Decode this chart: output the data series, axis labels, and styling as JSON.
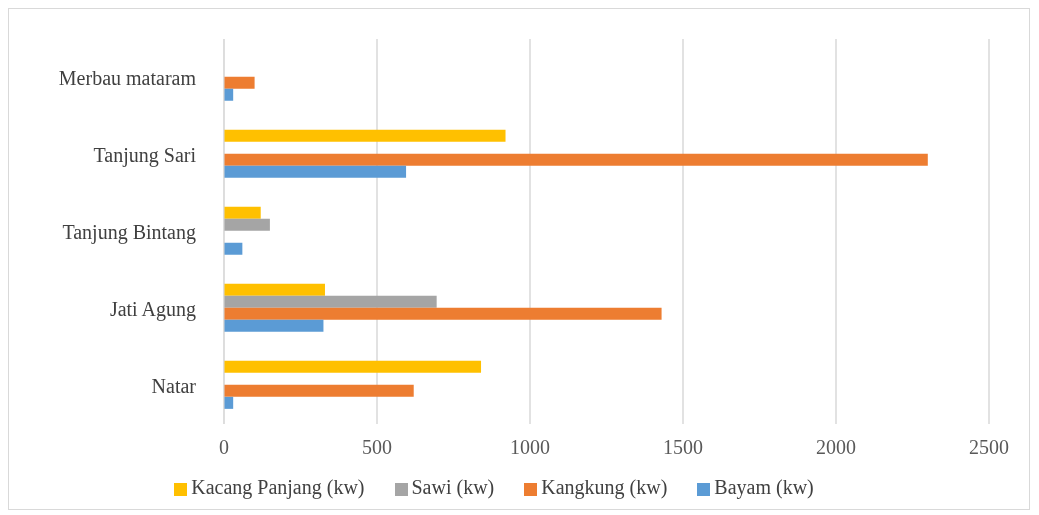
{
  "chart_data": {
    "type": "bar",
    "orientation": "horizontal",
    "categories": [
      "Merbau mataram",
      "Tanjung Sari",
      "Tanjung Bintang",
      "Jati Agung",
      "Natar"
    ],
    "series": [
      {
        "name": "Kacang Panjang (kw)",
        "color": "#ffc000",
        "values": [
          null,
          920,
          120,
          330,
          840
        ]
      },
      {
        "name": "Sawi (kw)",
        "color": "#a5a5a5",
        "values": [
          null,
          null,
          150,
          695,
          null
        ]
      },
      {
        "name": "Kangkung (kw)",
        "color": "#ed7d31",
        "values": [
          100,
          2300,
          null,
          1430,
          620
        ]
      },
      {
        "name": "Bayam (kw)",
        "color": "#5b9bd5",
        "values": [
          30,
          595,
          60,
          325,
          30
        ]
      }
    ],
    "xlim": [
      0,
      2500
    ],
    "xticks": [
      0,
      500,
      1000,
      1500,
      2000,
      2500
    ],
    "grid": "x",
    "legend": "bottom"
  }
}
